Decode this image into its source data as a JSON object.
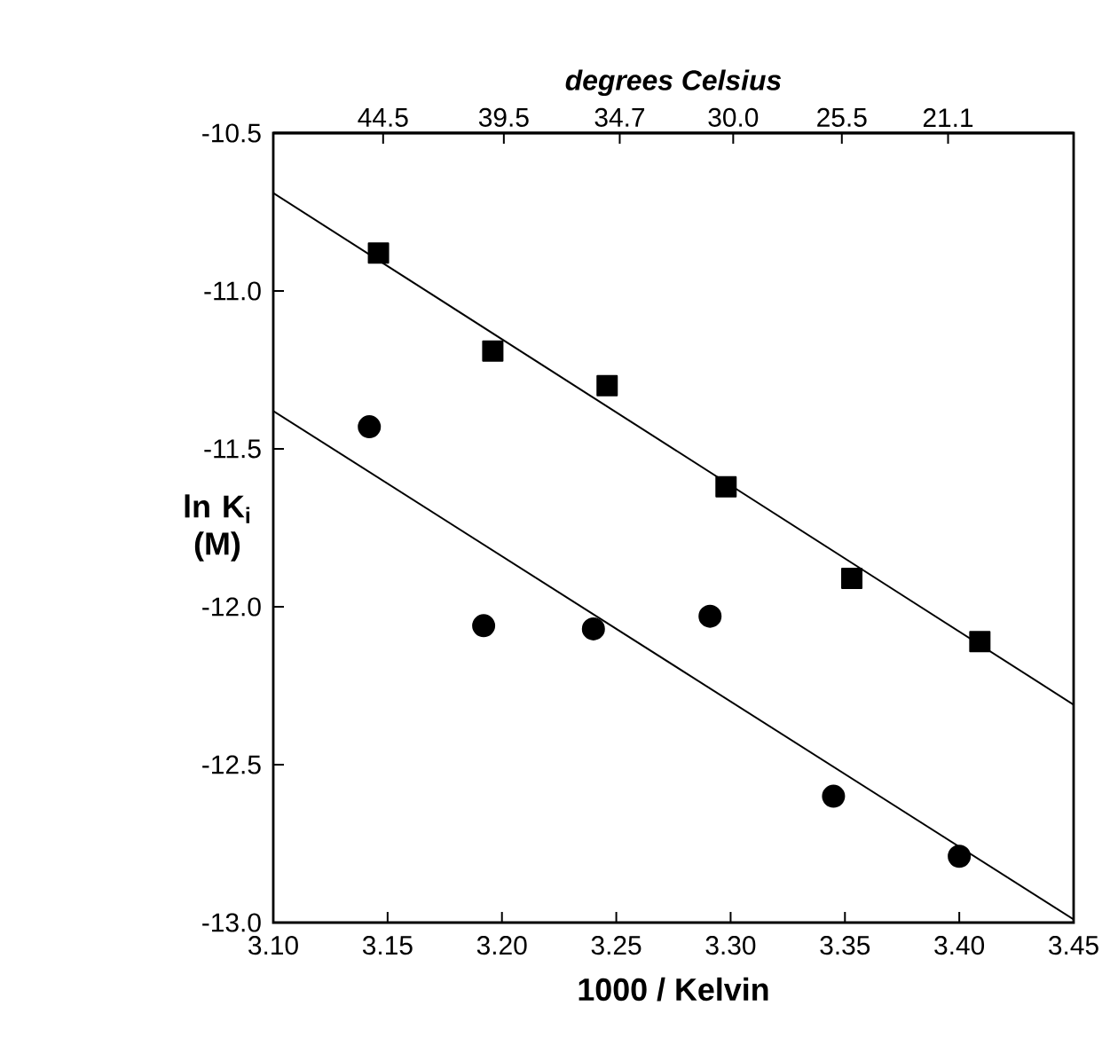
{
  "chart_data": {
    "type": "scatter",
    "xlabel": "1000 / Kelvin",
    "ylabel": "ln K$_{i}$ (M)",
    "x2label": "degrees Celsius",
    "xlim": [
      3.1,
      3.45
    ],
    "ylim": [
      -13.0,
      -10.5
    ],
    "xticks": [
      {
        "value": 3.1,
        "label": "3.10"
      },
      3.15,
      {
        "value": 3.2,
        "label": "3.20"
      },
      3.25,
      {
        "value": 3.3,
        "label": "3.30"
      },
      3.35,
      {
        "value": 3.4,
        "label": "3.40"
      },
      3.45
    ],
    "yticks": [
      -10.5,
      {
        "value": -11.0,
        "label": "-11.0"
      },
      -11.5,
      {
        "value": -12.0,
        "label": "-12.0"
      },
      -12.5,
      {
        "value": -13.0,
        "label": "-13.0"
      }
    ],
    "x2lim": [
      49.05,
      15.9
    ],
    "x2ticks": [
      44.5,
      39.5,
      34.7,
      {
        "value": 30.0,
        "label": "30.0"
      },
      25.5,
      21.1
    ],
    "series": [
      {
        "marker": "square",
        "color": "#000000",
        "x": [
          3.146,
          3.196,
          3.246,
          3.298,
          3.353,
          3.409
        ],
        "values": [
          -10.88,
          -11.19,
          -11.3,
          -11.62,
          -11.91,
          -12.11
        ]
      },
      {
        "marker": "circle",
        "color": "#000000",
        "x": [
          3.142,
          3.192,
          3.24,
          3.291,
          3.345,
          3.4
        ],
        "values": [
          -11.43,
          -12.06,
          -12.07,
          -12.03,
          -12.6,
          -12.79
        ]
      },
      {
        "type": "line",
        "marker": "none",
        "color": "#000000",
        "x": [
          3.1,
          3.45
        ],
        "values": [
          -10.69,
          -12.31
        ]
      },
      {
        "type": "line",
        "marker": "none",
        "color": "#000000",
        "x": [
          3.1,
          3.45
        ],
        "values": [
          -11.38,
          -12.99
        ]
      }
    ]
  }
}
